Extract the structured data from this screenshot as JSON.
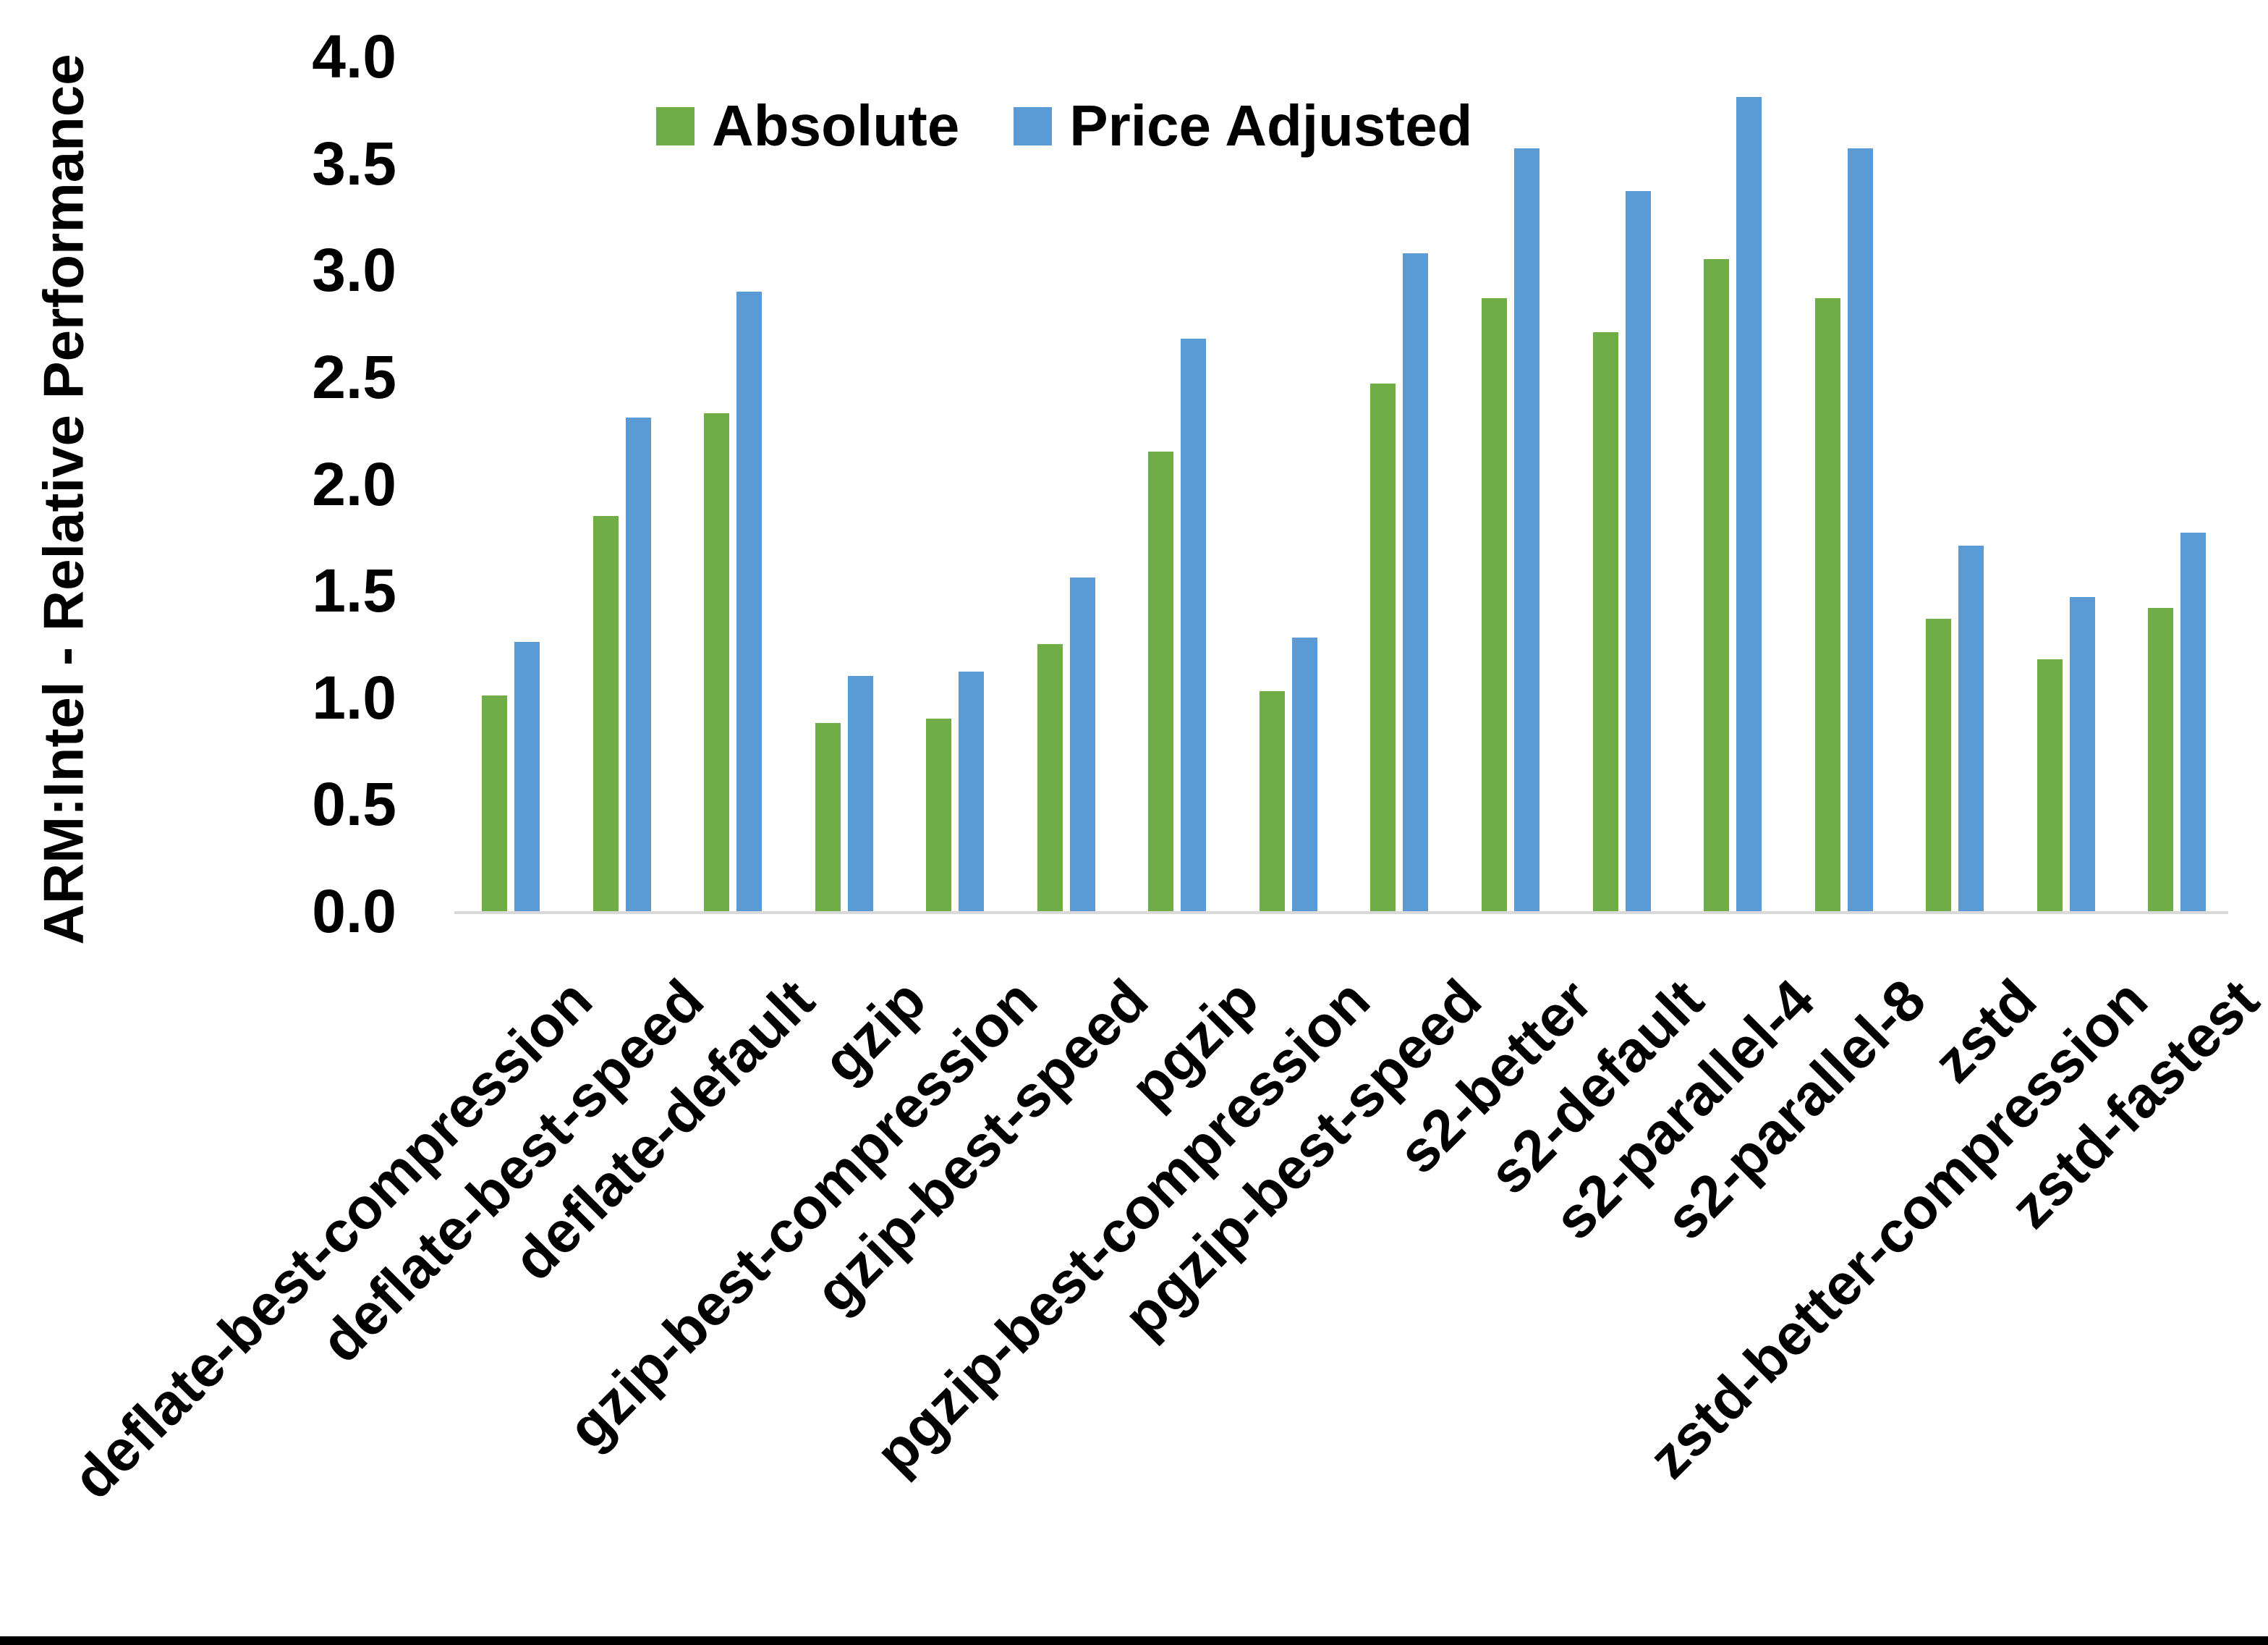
{
  "chart_data": {
    "type": "bar",
    "title": "",
    "xlabel": "",
    "ylabel": "ARM:Intel - Relative Performance",
    "ylim": [
      0.0,
      4.0
    ],
    "ytick_step": 0.5,
    "ytick_labels": [
      "4.0",
      "3.5",
      "3.0",
      "2.5",
      "2.0",
      "1.5",
      "1.0",
      "0.5",
      "0.0"
    ],
    "grid": false,
    "legend_position": "top-center",
    "x_label_rotation_deg": -45,
    "categories": [
      "deflate-best-compression",
      "deflate-best-speed",
      "deflate-default",
      "gzip",
      "gzip-best-compression",
      "gzip-best-speed",
      "pgzip",
      "pgzip-best-compression",
      "pgzip-best-speed",
      "s2-better",
      "s2-default",
      "s2-parallel-4",
      "s2-parallel-8",
      "zstd",
      "zstd-better-compression",
      "zstd-fastest"
    ],
    "series": [
      {
        "name": "Absolute",
        "color": "#70AD47",
        "values": [
          1.01,
          1.85,
          2.33,
          0.88,
          0.9,
          1.25,
          2.15,
          1.03,
          2.47,
          2.87,
          2.71,
          3.05,
          2.87,
          1.37,
          1.18,
          1.42
        ]
      },
      {
        "name": "Price Adjusted",
        "color": "#5B9BD5",
        "values": [
          1.26,
          2.31,
          2.9,
          1.1,
          1.12,
          1.56,
          2.68,
          1.28,
          3.08,
          3.57,
          3.37,
          3.81,
          3.57,
          1.71,
          1.47,
          1.77
        ]
      }
    ]
  },
  "colors": {
    "background": "#FFFFFF",
    "axis_line": "#D9D9D9",
    "text": "#000000",
    "bottom_bar": "#000000"
  }
}
